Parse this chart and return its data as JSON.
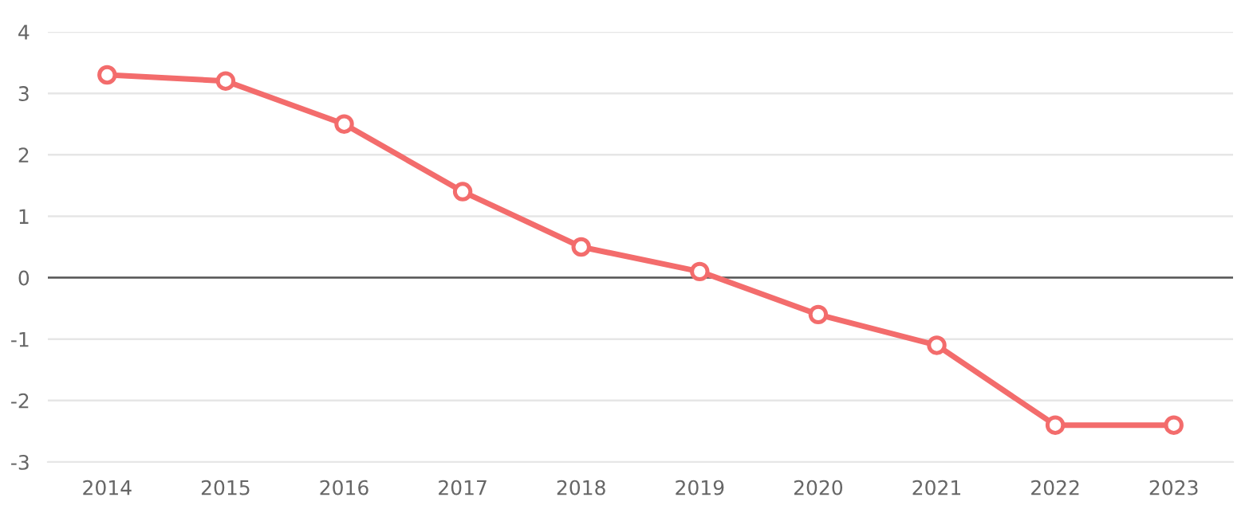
{
  "chart_data": {
    "type": "line",
    "categories": [
      "2014",
      "2015",
      "2016",
      "2017",
      "2018",
      "2019",
      "2020",
      "2021",
      "2022",
      "2023"
    ],
    "series": [
      {
        "color": "#f36c6c",
        "values": [
          3.3,
          3.2,
          2.5,
          1.4,
          0.5,
          0.1,
          -0.6,
          -1.1,
          -2.4,
          -2.4
        ]
      }
    ],
    "ylim": [
      -3,
      4
    ],
    "yticks": [
      -3,
      -2,
      -1,
      0,
      1,
      2,
      3,
      4
    ],
    "grid": "y",
    "marker": "circle",
    "line_style": "solid",
    "legend": false,
    "ref_lines": [
      {
        "axis": "y",
        "value": 0,
        "color": "#555555"
      }
    ]
  }
}
